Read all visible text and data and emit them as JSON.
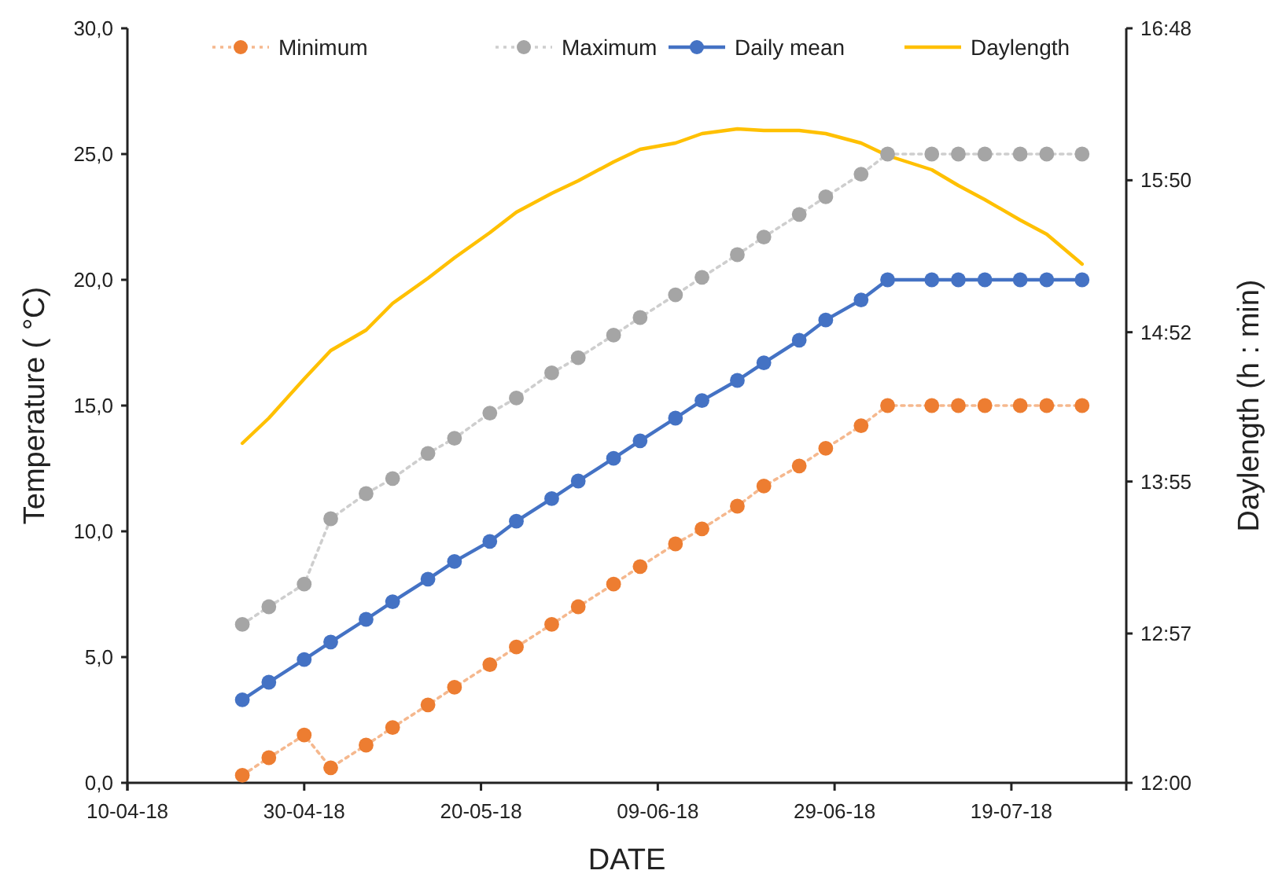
{
  "chart_data": {
    "type": "line",
    "xlabel": "DATE",
    "ylabel": "Temperature ( °C)",
    "y2label": "Daylength (h : min)",
    "x": [
      "2018-04-23",
      "2018-04-26",
      "2018-04-30",
      "2018-05-03",
      "2018-05-07",
      "2018-05-10",
      "2018-05-14",
      "2018-05-17",
      "2018-05-21",
      "2018-05-24",
      "2018-05-28",
      "2018-05-31",
      "2018-06-04",
      "2018-06-07",
      "2018-06-11",
      "2018-06-14",
      "2018-06-18",
      "2018-06-21",
      "2018-06-25",
      "2018-06-28",
      "2018-07-02",
      "2018-07-05",
      "2018-07-10",
      "2018-07-13",
      "2018-07-16",
      "2018-07-20",
      "2018-07-23",
      "2018-07-27"
    ],
    "series": [
      {
        "name": "Minimum",
        "color": "#ed7d31",
        "type": "line",
        "marker": "circle",
        "line_style": "dotted",
        "values": [
          0.3,
          1.0,
          1.9,
          0.6,
          1.5,
          2.2,
          3.1,
          3.8,
          4.7,
          5.4,
          6.3,
          7.0,
          7.9,
          8.6,
          9.5,
          10.1,
          11.0,
          11.8,
          12.6,
          13.3,
          14.2,
          15,
          15,
          15,
          15,
          15,
          15,
          15
        ]
      },
      {
        "name": "Maximum",
        "color": "#a5a5a5",
        "type": "line",
        "marker": "circle",
        "line_style": "dotted",
        "values": [
          6.3,
          7.0,
          7.9,
          10.5,
          11.5,
          12.1,
          13.1,
          13.7,
          14.7,
          15.3,
          16.3,
          16.9,
          17.8,
          18.5,
          19.4,
          20.1,
          21.0,
          21.7,
          22.6,
          23.3,
          24.2,
          25,
          25,
          25,
          25,
          25,
          25,
          25
        ]
      },
      {
        "name": "Daily mean",
        "color": "#4472c4",
        "type": "line",
        "marker": "circle",
        "line_style": "solid",
        "values": [
          3.3,
          4.0,
          4.9,
          5.6,
          6.5,
          7.2,
          8.1,
          8.8,
          9.6,
          10.4,
          11.3,
          12.0,
          12.9,
          13.6,
          14.5,
          15.2,
          16.0,
          16.7,
          17.6,
          18.4,
          19.2,
          20,
          20,
          20,
          20,
          20,
          20,
          20
        ]
      },
      {
        "name": "Daylength",
        "color": "#ffc000",
        "type": "line",
        "marker": "none",
        "line_style": "solid",
        "axis": "y2",
        "values": [
          14.16,
          14.32,
          14.57,
          14.75,
          14.88,
          15.05,
          15.21,
          15.34,
          15.5,
          15.63,
          15.75,
          15.83,
          15.95,
          16.03,
          16.07,
          16.13,
          16.16,
          16.15,
          16.15,
          16.13,
          16.07,
          15.99,
          15.9,
          15.8,
          15.71,
          15.58,
          15.49,
          15.3
        ]
      }
    ],
    "xlim": [
      "2018-04-10",
      "2018-08-01"
    ],
    "xticks": [
      {
        "value": "2018-04-10",
        "label": "10-04-18"
      },
      {
        "value": "2018-04-30",
        "label": "30-04-18"
      },
      {
        "value": "2018-05-20",
        "label": "20-05-18"
      },
      {
        "value": "2018-06-09",
        "label": "09-06-18"
      },
      {
        "value": "2018-06-29",
        "label": "29-06-18"
      },
      {
        "value": "2018-07-19",
        "label": "19-07-18"
      }
    ],
    "ylim": [
      0,
      30
    ],
    "yticks": [
      {
        "value": 0,
        "label": "0,0"
      },
      {
        "value": 5,
        "label": "5,0"
      },
      {
        "value": 10,
        "label": "10,0"
      },
      {
        "value": 15,
        "label": "15,0"
      },
      {
        "value": 20,
        "label": "20,0"
      },
      {
        "value": 25,
        "label": "25,0"
      },
      {
        "value": 30,
        "label": "30,0"
      }
    ],
    "y2lim": [
      12,
      16.8
    ],
    "y2ticks": [
      {
        "value": 12,
        "label": "12:00"
      },
      {
        "value": 12.95,
        "label": "12:57"
      },
      {
        "value": 13.9167,
        "label": "13:55"
      },
      {
        "value": 14.8667,
        "label": "14:52"
      },
      {
        "value": 15.8333,
        "label": "15:50"
      },
      {
        "value": 16.8,
        "label": "16:48"
      }
    ],
    "grid": false,
    "legend": "top"
  }
}
